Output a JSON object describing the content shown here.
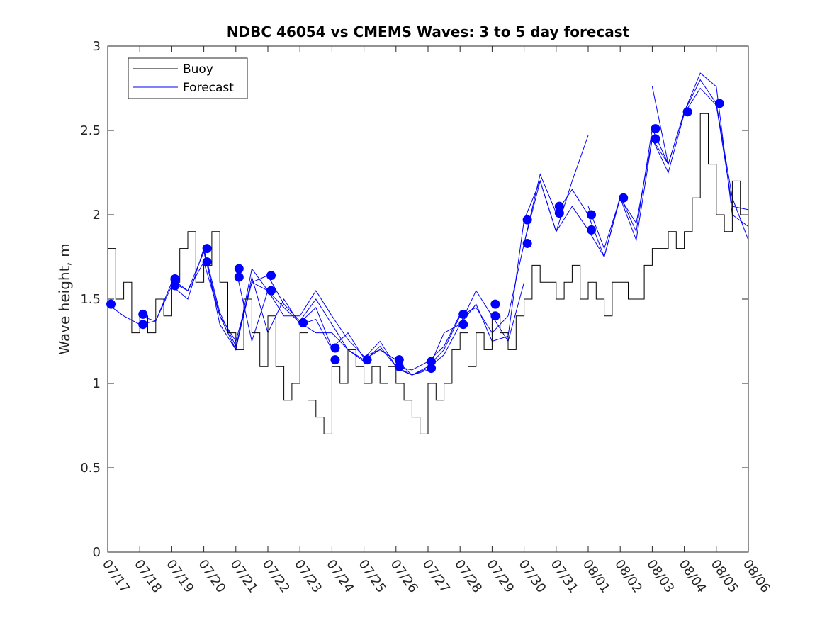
{
  "chart_data": {
    "type": "line",
    "title": "NDBC 46054 vs CMEMS Waves: 3 to 5 day forecast",
    "xlabel": "",
    "ylabel": "Wave height, m",
    "ylim": [
      0,
      3
    ],
    "yticks": [
      "0",
      "0.5",
      "1",
      "1.5",
      "2",
      "2.5",
      "3"
    ],
    "xlim": [
      0,
      20
    ],
    "xticks": [
      "07/17",
      "07/18",
      "07/19",
      "07/20",
      "07/21",
      "07/22",
      "07/23",
      "07/24",
      "07/25",
      "07/26",
      "07/27",
      "07/28",
      "07/29",
      "07/30",
      "07/31",
      "08/01",
      "08/02",
      "08/03",
      "08/04",
      "08/05",
      "08/06"
    ],
    "x_unit": "days since 07/17 00:00",
    "grid": false,
    "legend": {
      "placement": "top-left",
      "entries": [
        {
          "label": "Buoy",
          "color": "#000000"
        },
        {
          "label": "Forecast",
          "color": "#0000ff"
        }
      ]
    },
    "colors": {
      "buoy": "#000000",
      "forecast": "#0000ff"
    },
    "buoy": {
      "x": [
        0.0,
        0.25,
        0.5,
        0.75,
        1.0,
        1.25,
        1.5,
        1.75,
        2.0,
        2.25,
        2.5,
        2.75,
        3.0,
        3.25,
        3.5,
        3.75,
        4.0,
        4.25,
        4.5,
        4.75,
        5.0,
        5.25,
        5.5,
        5.75,
        6.0,
        6.25,
        6.5,
        6.75,
        7.0,
        7.25,
        7.5,
        7.75,
        8.0,
        8.25,
        8.5,
        8.75,
        9.0,
        9.25,
        9.5,
        9.75,
        10.0,
        10.25,
        10.5,
        10.75,
        11.0,
        11.25,
        11.5,
        11.75,
        12.0,
        12.25,
        12.5,
        12.75,
        13.0,
        13.25,
        13.5,
        13.75,
        14.0,
        14.25,
        14.5,
        14.75,
        15.0,
        15.25,
        15.5,
        15.75,
        16.0,
        16.25,
        16.5,
        16.75,
        17.0,
        17.25,
        17.5,
        17.75,
        18.0,
        18.25,
        18.5,
        18.75,
        19.0,
        19.25,
        19.5,
        19.75,
        20.0
      ],
      "values": [
        1.8,
        1.5,
        1.6,
        1.3,
        1.4,
        1.3,
        1.5,
        1.4,
        1.6,
        1.8,
        1.9,
        1.6,
        1.7,
        1.9,
        1.6,
        1.3,
        1.2,
        1.5,
        1.3,
        1.1,
        1.4,
        1.1,
        0.9,
        1.0,
        1.3,
        0.9,
        0.8,
        0.7,
        1.1,
        1.0,
        1.2,
        1.1,
        1.0,
        1.1,
        1.0,
        1.1,
        1.0,
        0.9,
        0.8,
        0.7,
        1.0,
        0.9,
        1.0,
        1.2,
        1.3,
        1.1,
        1.3,
        1.2,
        1.4,
        1.3,
        1.2,
        1.4,
        1.5,
        1.7,
        1.6,
        1.6,
        1.5,
        1.6,
        1.7,
        1.5,
        1.6,
        1.5,
        1.4,
        1.6,
        1.6,
        1.5,
        1.5,
        1.7,
        1.8,
        1.8,
        1.9,
        1.8,
        1.9,
        2.1,
        2.6,
        2.3,
        2.0,
        1.9,
        2.2,
        2.0,
        1.9
      ]
    },
    "forecast_series": [
      {
        "x": [
          0.0,
          0.5,
          1.0,
          1.5,
          2.0,
          2.5,
          3.0,
          3.5,
          4.0,
          4.5,
          5.0
        ],
        "values": [
          1.47,
          1.4,
          1.35,
          1.37,
          1.6,
          1.55,
          1.78,
          1.4,
          1.25,
          1.6,
          1.55
        ]
      },
      {
        "x": [
          1.0,
          1.5,
          2.0,
          2.5,
          3.0,
          3.5,
          4.0,
          4.5,
          5.0,
          5.5,
          6.0,
          6.5,
          7.0
        ],
        "values": [
          1.4,
          1.37,
          1.58,
          1.5,
          1.8,
          1.35,
          1.2,
          1.63,
          1.3,
          1.5,
          1.35,
          1.38,
          1.2
        ]
      },
      {
        "x": [
          2.0,
          2.5,
          3.0,
          3.5,
          4.0,
          4.5,
          5.0,
          5.5,
          6.0,
          6.5,
          7.0,
          7.5,
          8.0,
          8.5,
          9.0
        ],
        "values": [
          1.62,
          1.55,
          1.72,
          1.4,
          1.2,
          1.68,
          1.55,
          1.45,
          1.36,
          1.3,
          1.3,
          1.2,
          1.14,
          1.2,
          1.14
        ]
      },
      {
        "x": [
          3.0,
          3.5,
          4.0,
          4.5,
          5.0,
          5.5,
          6.0,
          6.5,
          7.0,
          7.5,
          8.0,
          8.5,
          9.0,
          9.5,
          10.0,
          10.5,
          11.0
        ],
        "values": [
          1.8,
          1.42,
          1.22,
          1.6,
          1.64,
          1.47,
          1.37,
          1.5,
          1.35,
          1.2,
          1.13,
          1.22,
          1.1,
          1.08,
          1.13,
          1.22,
          1.41
        ]
      },
      {
        "x": [
          4.0,
          4.5,
          5.0,
          5.5,
          6.0,
          6.5,
          7.0,
          7.5,
          8.0,
          8.5,
          9.0,
          9.5,
          10.0,
          10.5,
          11.0,
          11.5,
          12.0,
          12.5,
          13.0
        ],
        "values": [
          1.68,
          1.25,
          1.55,
          1.4,
          1.4,
          1.55,
          1.4,
          1.26,
          1.16,
          1.2,
          1.14,
          1.05,
          1.09,
          1.17,
          1.35,
          1.55,
          1.4,
          1.25,
          1.6
        ]
      },
      {
        "x": [
          6.0,
          6.5,
          7.0,
          7.5,
          8.0,
          8.5,
          9.0,
          9.5,
          10.0,
          10.5,
          11.0,
          11.5,
          12.0,
          12.5,
          13.0,
          13.5,
          14.0,
          14.5,
          15.0
        ],
        "values": [
          1.36,
          1.45,
          1.21,
          1.3,
          1.15,
          1.25,
          1.1,
          1.05,
          1.1,
          1.2,
          1.4,
          1.45,
          1.3,
          1.4,
          1.83,
          2.2,
          1.9,
          2.2,
          2.47
        ]
      },
      {
        "x": [
          9.0,
          9.5,
          10.0,
          10.5,
          11.0,
          11.5,
          12.0,
          12.5,
          13.0,
          13.5,
          14.0,
          14.5,
          15.0,
          15.5,
          16.0,
          16.5,
          17.0,
          17.5
        ],
        "values": [
          1.09,
          1.05,
          1.08,
          1.3,
          1.35,
          1.47,
          1.25,
          1.28,
          1.97,
          2.2,
          1.9,
          2.05,
          1.91,
          1.75,
          2.1,
          1.85,
          2.45,
          2.3
        ]
      },
      {
        "x": [
          13.0,
          13.5,
          14.0,
          14.5,
          15.0,
          15.5,
          16.0,
          16.5,
          17.0,
          17.5,
          18.0,
          18.5,
          19.0,
          19.5,
          20.0
        ],
        "values": [
          1.83,
          2.24,
          2.01,
          2.15,
          2.0,
          1.75,
          2.11,
          1.9,
          2.51,
          2.3,
          2.61,
          2.8,
          2.66,
          2.1,
          1.85
        ]
      },
      {
        "x": [
          15.0,
          15.5,
          16.0,
          16.5,
          17.0,
          17.5,
          18.0,
          18.5,
          19.0,
          19.5,
          20.0
        ],
        "values": [
          2.05,
          1.8,
          2.1,
          1.95,
          2.45,
          2.25,
          2.6,
          2.75,
          2.65,
          2.05,
          2.03
        ]
      },
      {
        "x": [
          17.0,
          17.5,
          18.0,
          18.5,
          19.0,
          19.5,
          20.0
        ],
        "values": [
          2.76,
          2.3,
          2.61,
          2.84,
          2.76,
          2.0,
          1.93
        ]
      }
    ],
    "forecast_markers": {
      "x": [
        0.1,
        1.1,
        1.1,
        2.1,
        2.1,
        3.1,
        3.1,
        4.1,
        4.1,
        5.1,
        5.1,
        6.1,
        7.1,
        7.1,
        8.1,
        9.1,
        9.1,
        10.1,
        10.1,
        11.1,
        11.1,
        12.1,
        12.1,
        13.1,
        13.1,
        14.1,
        14.1,
        15.1,
        15.1,
        16.1,
        17.1,
        17.1,
        18.1,
        19.1
      ],
      "values": [
        1.47,
        1.41,
        1.35,
        1.62,
        1.58,
        1.8,
        1.72,
        1.68,
        1.63,
        1.64,
        1.55,
        1.36,
        1.21,
        1.14,
        1.14,
        1.14,
        1.1,
        1.13,
        1.09,
        1.41,
        1.35,
        1.47,
        1.4,
        1.97,
        1.83,
        2.05,
        2.01,
        2.0,
        1.91,
        2.1,
        2.51,
        2.45,
        2.61,
        2.66
      ]
    }
  }
}
